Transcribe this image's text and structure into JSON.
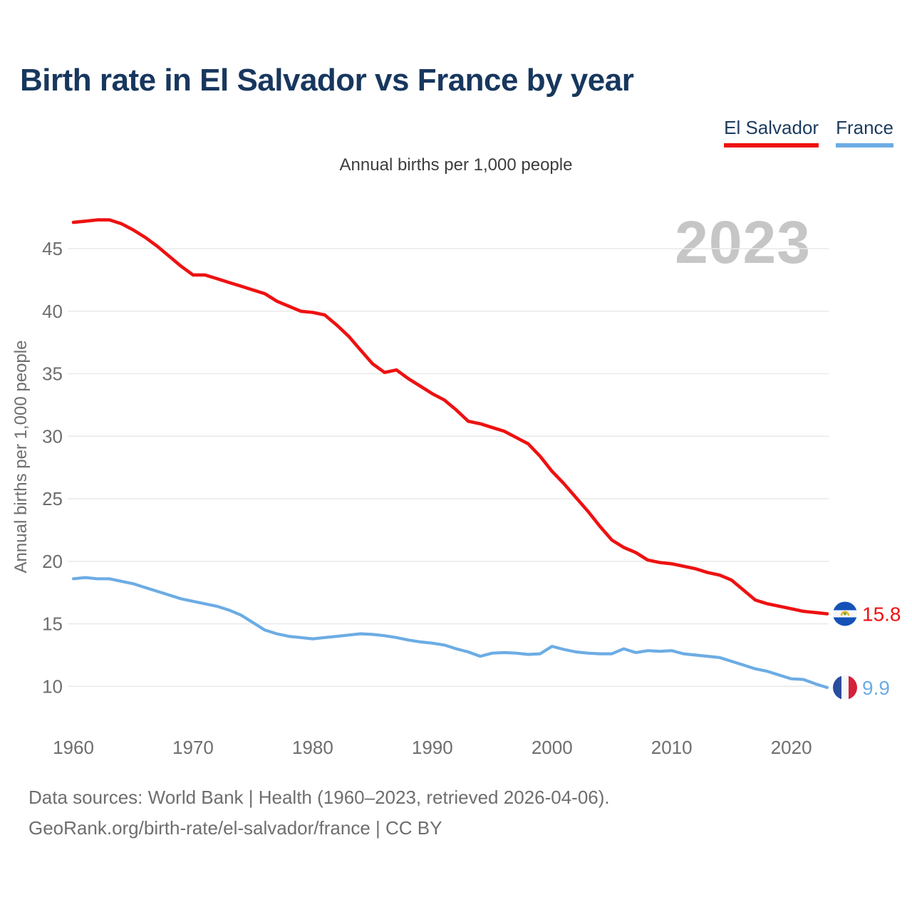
{
  "title": "Birth rate in El Salvador vs France by year",
  "subtitle": "Annual births per 1,000 people",
  "watermark": "2023",
  "y_axis_label": "Annual births per 1,000 people",
  "legend": [
    {
      "label": "El Salvador",
      "color": "#ee1111"
    },
    {
      "label": "France",
      "color": "#6cace4"
    }
  ],
  "end_labels": [
    {
      "series": "El Salvador",
      "value": "15.8",
      "color": "#ee1111",
      "flag": "el-salvador-flag"
    },
    {
      "series": "France",
      "value": "9.9",
      "color": "#6cace4",
      "flag": "france-flag"
    }
  ],
  "footer": {
    "line1": "Data sources: World Bank | Health (1960–2023, retrieved 2026-04-06).",
    "line2": "GeoRank.org/birth-rate/el-salvador/france | CC BY"
  },
  "chart_data": {
    "type": "line",
    "title": "Birth rate in El Salvador vs France by year",
    "ylabel": "Annual births per 1,000 people",
    "xlabel": "",
    "grid": true,
    "legend_position": "top-right",
    "xlim": [
      1960,
      2023
    ],
    "ylim": [
      8.5,
      48.5
    ],
    "xticks": [
      1960,
      1970,
      1980,
      1990,
      2000,
      2010,
      2020
    ],
    "yticks": [
      10,
      15,
      20,
      25,
      30,
      35,
      40,
      45
    ],
    "x": [
      1960,
      1961,
      1962,
      1963,
      1964,
      1965,
      1966,
      1967,
      1968,
      1969,
      1970,
      1971,
      1972,
      1973,
      1974,
      1975,
      1976,
      1977,
      1978,
      1979,
      1980,
      1981,
      1982,
      1983,
      1984,
      1985,
      1986,
      1987,
      1988,
      1989,
      1990,
      1991,
      1992,
      1993,
      1994,
      1995,
      1996,
      1997,
      1998,
      1999,
      2000,
      2001,
      2002,
      2003,
      2004,
      2005,
      2006,
      2007,
      2008,
      2009,
      2010,
      2011,
      2012,
      2013,
      2014,
      2015,
      2016,
      2017,
      2018,
      2019,
      2020,
      2021,
      2022,
      2023
    ],
    "series": [
      {
        "name": "El Salvador",
        "color": "#ee1111",
        "values": [
          47.1,
          47.2,
          47.3,
          47.3,
          47.0,
          46.5,
          45.9,
          45.2,
          44.4,
          43.6,
          42.9,
          42.9,
          42.6,
          42.3,
          42.0,
          41.7,
          41.4,
          40.8,
          40.4,
          40.0,
          39.9,
          39.7,
          38.9,
          38.0,
          36.9,
          35.8,
          35.1,
          35.3,
          34.6,
          34.0,
          33.4,
          32.9,
          32.1,
          31.2,
          31.0,
          30.7,
          30.4,
          29.9,
          29.4,
          28.4,
          27.2,
          26.2,
          25.1,
          24.0,
          22.8,
          21.7,
          21.1,
          20.7,
          20.1,
          19.9,
          19.8,
          19.6,
          19.4,
          19.1,
          18.9,
          18.5,
          17.7,
          16.9,
          16.6,
          16.4,
          16.2,
          16.0,
          15.9,
          15.8
        ]
      },
      {
        "name": "France",
        "color": "#6cace4",
        "values": [
          18.6,
          18.7,
          18.6,
          18.6,
          18.4,
          18.2,
          17.9,
          17.6,
          17.3,
          17.0,
          16.8,
          16.6,
          16.4,
          16.1,
          15.7,
          15.1,
          14.5,
          14.2,
          14.0,
          13.9,
          13.8,
          13.9,
          14.0,
          14.1,
          14.2,
          14.15,
          14.05,
          13.9,
          13.7,
          13.55,
          13.45,
          13.3,
          13.0,
          12.75,
          12.4,
          12.65,
          12.7,
          12.65,
          12.55,
          12.6,
          13.2,
          12.95,
          12.75,
          12.65,
          12.6,
          12.6,
          13.0,
          12.7,
          12.85,
          12.8,
          12.85,
          12.6,
          12.5,
          12.4,
          12.3,
          12.0,
          11.7,
          11.4,
          11.2,
          10.9,
          10.6,
          10.55,
          10.2,
          9.9
        ]
      }
    ]
  }
}
